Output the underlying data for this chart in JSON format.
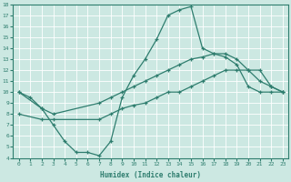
{
  "xlabel": "Humidex (Indice chaleur)",
  "xlim": [
    -0.5,
    23.5
  ],
  "ylim": [
    4,
    18
  ],
  "xticks": [
    0,
    1,
    2,
    3,
    4,
    5,
    6,
    7,
    8,
    9,
    10,
    11,
    12,
    13,
    14,
    15,
    16,
    17,
    18,
    19,
    20,
    21,
    22,
    23
  ],
  "yticks": [
    4,
    5,
    6,
    7,
    8,
    9,
    10,
    11,
    12,
    13,
    14,
    15,
    16,
    17,
    18
  ],
  "line_color": "#2e7d6e",
  "bg_color": "#cce8e2",
  "grid_color": "#b0d8d0",
  "line1_x": [
    0,
    1,
    2,
    3,
    4,
    5,
    6,
    7,
    8,
    9,
    10,
    11,
    12,
    13,
    14,
    15,
    16,
    17,
    18,
    19,
    20,
    21,
    22,
    23
  ],
  "line1_y": [
    10,
    9.5,
    8.5,
    7,
    5.5,
    4.5,
    4.5,
    4.2,
    5.5,
    9.5,
    11.5,
    13,
    14.8,
    17,
    17.5,
    17.8,
    14,
    13.5,
    13.2,
    12.5,
    10.5,
    10,
    10,
    10
  ],
  "line2_x": [
    0,
    2,
    3,
    7,
    8,
    9,
    10,
    11,
    12,
    13,
    14,
    15,
    16,
    17,
    18,
    19,
    20,
    21,
    22,
    23
  ],
  "line2_y": [
    10,
    8.5,
    8,
    9,
    9.5,
    10,
    10.5,
    11,
    11.5,
    12,
    12.5,
    13,
    13.2,
    13.5,
    13.5,
    13,
    12,
    11,
    10.5,
    10
  ],
  "line3_x": [
    0,
    2,
    3,
    7,
    8,
    9,
    10,
    11,
    12,
    13,
    14,
    15,
    16,
    17,
    18,
    19,
    20,
    21,
    22,
    23
  ],
  "line3_y": [
    8,
    7.5,
    7.5,
    7.5,
    8,
    8.5,
    8.8,
    9,
    9.5,
    10,
    10,
    10.5,
    11,
    11.5,
    12,
    12,
    12,
    12,
    10.5,
    10
  ]
}
